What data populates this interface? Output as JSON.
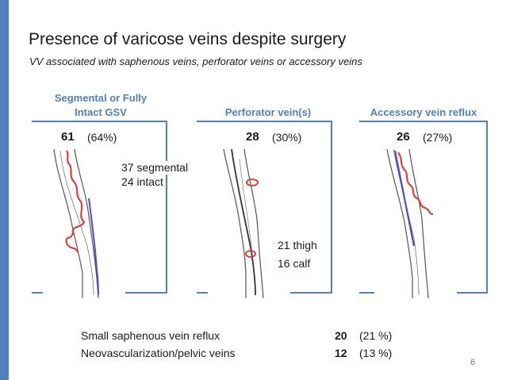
{
  "title": "Presence of varicose veins despite surgery",
  "subtitle": "VV associated with saphenous veins, perforator veins or accessory veins",
  "columns": [
    {
      "heading_line1": "Segmental or Fully",
      "heading_line2": "Intact GSV",
      "count": "61",
      "percent": "(64%)",
      "notes": [
        "37 segmental",
        "24 intact"
      ]
    },
    {
      "heading_line1": "Perforator vein(s)",
      "count": "28",
      "percent": "(30%)",
      "notes": [
        "21 thigh",
        "16 calf"
      ]
    },
    {
      "heading_line1": "Accessory vein reflux",
      "count": "26",
      "percent": "(27%)"
    }
  ],
  "bottom_rows": [
    {
      "label": "Small saphenous vein reflux",
      "count": "20",
      "percent": "(21 %)"
    },
    {
      "label": "Neovascularization/pelvic veins",
      "count": "12",
      "percent": "(13 %)"
    }
  ],
  "page_number": "6",
  "colors": {
    "accent": "#4f81bd",
    "reflux_vein": "#d9413b",
    "deep_vein": "#4a4fc0"
  }
}
